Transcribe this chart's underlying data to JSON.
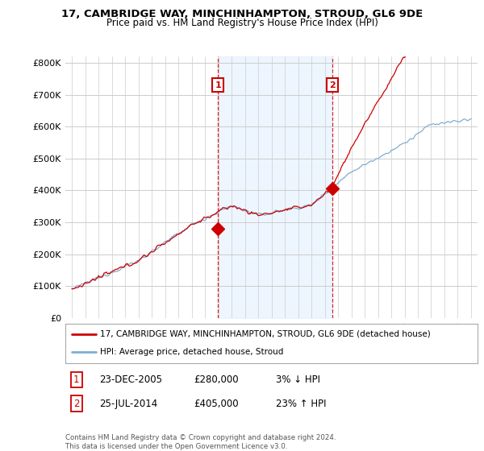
{
  "title_line1": "17, CAMBRIDGE WAY, MINCHINHAMPTON, STROUD, GL6 9DE",
  "title_line2": "Price paid vs. HM Land Registry's House Price Index (HPI)",
  "ylabel_ticks": [
    "£0",
    "£100K",
    "£200K",
    "£300K",
    "£400K",
    "£500K",
    "£600K",
    "£700K",
    "£800K"
  ],
  "ytick_values": [
    0,
    100000,
    200000,
    300000,
    400000,
    500000,
    600000,
    700000,
    800000
  ],
  "ylim": [
    0,
    820000
  ],
  "xlim_start": 1994.5,
  "xlim_end": 2025.5,
  "hpi_color": "#7fafd4",
  "price_color": "#cc0000",
  "shade_color": "#ddeeff",
  "transaction1_x": 2005.97,
  "transaction1_y": 280000,
  "transaction2_x": 2014.56,
  "transaction2_y": 405000,
  "legend_label1": "17, CAMBRIDGE WAY, MINCHINHAMPTON, STROUD, GL6 9DE (detached house)",
  "legend_label2": "HPI: Average price, detached house, Stroud",
  "footer": "Contains HM Land Registry data © Crown copyright and database right 2024.\nThis data is licensed under the Open Government Licence v3.0.",
  "background_color": "#ffffff",
  "grid_color": "#cccccc"
}
